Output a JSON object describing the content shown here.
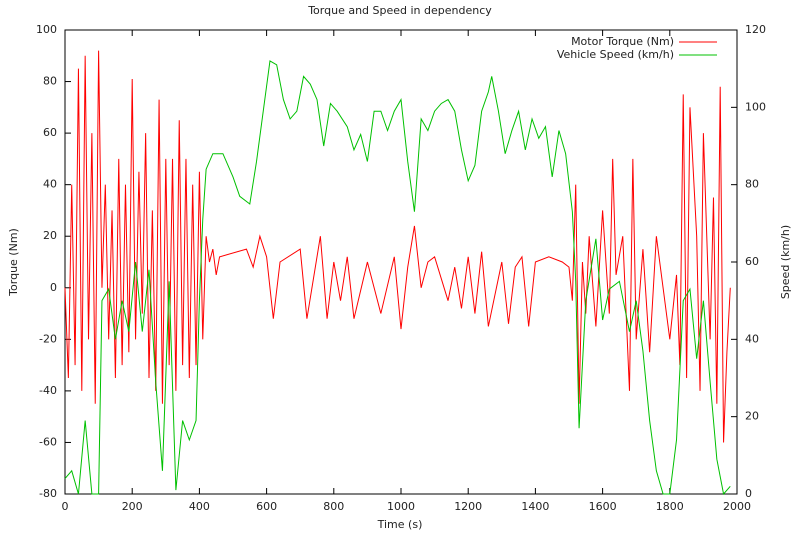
{
  "chart_data": {
    "type": "line",
    "title": "Torque and Speed in dependency",
    "x_label": "Time (s)",
    "y_label": "Torque (Nm)",
    "y2_label": "Speed (km/h)",
    "xlim": [
      0,
      2000
    ],
    "xticks": [
      0,
      200,
      400,
      600,
      800,
      1000,
      1200,
      1400,
      1600,
      1800,
      2000
    ],
    "ylim": [
      -80,
      100
    ],
    "yticks": [
      -80,
      -60,
      -40,
      -20,
      0,
      20,
      40,
      60,
      80,
      100
    ],
    "y2lim": [
      0,
      120
    ],
    "y2ticks": [
      0,
      20,
      40,
      60,
      80,
      100,
      120
    ],
    "legend": "top-right",
    "grid": false,
    "series": [
      {
        "name": "Motor Torque (Nm)",
        "color": "#ff0000",
        "x": [
          0,
          10,
          20,
          30,
          40,
          50,
          60,
          70,
          80,
          90,
          100,
          110,
          120,
          130,
          140,
          150,
          160,
          170,
          180,
          190,
          200,
          210,
          220,
          230,
          240,
          250,
          260,
          270,
          280,
          290,
          300,
          310,
          320,
          330,
          340,
          350,
          360,
          370,
          380,
          390,
          400,
          410,
          420,
          430,
          440,
          450,
          460,
          540,
          560,
          580,
          600,
          620,
          640,
          700,
          720,
          760,
          780,
          800,
          820,
          840,
          860,
          900,
          940,
          980,
          1000,
          1020,
          1040,
          1060,
          1080,
          1100,
          1140,
          1160,
          1180,
          1200,
          1220,
          1240,
          1260,
          1300,
          1320,
          1340,
          1360,
          1380,
          1400,
          1440,
          1480,
          1500,
          1510,
          1520,
          1530,
          1540,
          1550,
          1560,
          1580,
          1600,
          1620,
          1630,
          1640,
          1660,
          1680,
          1690,
          1700,
          1720,
          1740,
          1760,
          1780,
          1800,
          1820,
          1830,
          1840,
          1850,
          1860,
          1880,
          1890,
          1900,
          1920,
          1930,
          1940,
          1950,
          1960,
          1970,
          1980
        ],
        "values": [
          0,
          -35,
          40,
          -30,
          85,
          -40,
          90,
          -20,
          60,
          -45,
          92,
          0,
          40,
          -20,
          30,
          -35,
          50,
          -30,
          40,
          -25,
          81,
          -20,
          45,
          -10,
          60,
          -35,
          30,
          -40,
          73,
          -45,
          50,
          -30,
          50,
          -40,
          65,
          -30,
          50,
          -35,
          40,
          -30,
          45,
          -20,
          20,
          10,
          15,
          5,
          12,
          15,
          8,
          20,
          12,
          -12,
          10,
          15,
          -12,
          20,
          -12,
          10,
          -5,
          12,
          -12,
          10,
          -10,
          12,
          -16,
          8,
          24,
          0,
          10,
          12,
          -5,
          8,
          -8,
          12,
          -10,
          14,
          -15,
          10,
          -14,
          8,
          12,
          -15,
          10,
          12,
          10,
          8,
          -5,
          40,
          -45,
          10,
          -10,
          20,
          -15,
          30,
          -10,
          50,
          5,
          20,
          -40,
          50,
          -20,
          15,
          -25,
          20,
          0,
          -20,
          5,
          -30,
          75,
          -35,
          70,
          20,
          -40,
          60,
          -20,
          35,
          -45,
          78,
          -60,
          -25,
          0
        ]
      },
      {
        "name": "Vehicle Speed (km/h)",
        "color": "#00c000",
        "axis": "y2",
        "x": [
          0,
          20,
          40,
          60,
          80,
          100,
          110,
          130,
          150,
          170,
          190,
          210,
          230,
          250,
          270,
          290,
          310,
          330,
          350,
          370,
          390,
          400,
          410,
          420,
          440,
          470,
          500,
          520,
          550,
          570,
          590,
          610,
          630,
          650,
          670,
          690,
          710,
          730,
          750,
          770,
          790,
          810,
          840,
          860,
          880,
          900,
          920,
          940,
          960,
          980,
          1000,
          1020,
          1040,
          1060,
          1080,
          1100,
          1120,
          1140,
          1160,
          1180,
          1200,
          1220,
          1240,
          1260,
          1270,
          1290,
          1310,
          1330,
          1350,
          1370,
          1390,
          1410,
          1430,
          1450,
          1470,
          1490,
          1510,
          1520,
          1530,
          1550,
          1580,
          1600,
          1620,
          1650,
          1680,
          1700,
          1720,
          1740,
          1760,
          1780,
          1800,
          1820,
          1840,
          1860,
          1880,
          1900,
          1920,
          1940,
          1960,
          1980
        ],
        "values": [
          4,
          6,
          0,
          19,
          0,
          0,
          50,
          53,
          40,
          50,
          42,
          60,
          42,
          58,
          29,
          6,
          55,
          1,
          19,
          14,
          19,
          50,
          71,
          84,
          88,
          88,
          82,
          77,
          75,
          86,
          99,
          112,
          111,
          102,
          97,
          99,
          108,
          106,
          102,
          90,
          101,
          99,
          95,
          89,
          93,
          86,
          99,
          99,
          94,
          99,
          102,
          86,
          73,
          97,
          94,
          99,
          101,
          102,
          99,
          89,
          81,
          85,
          99,
          104,
          108,
          99,
          88,
          94,
          99,
          89,
          97,
          92,
          95,
          82,
          94,
          88,
          73,
          55,
          17,
          50,
          66,
          45,
          53,
          55,
          42,
          50,
          37,
          19,
          6,
          0,
          0,
          14,
          50,
          53,
          35,
          50,
          29,
          9,
          0,
          2
        ]
      }
    ]
  }
}
